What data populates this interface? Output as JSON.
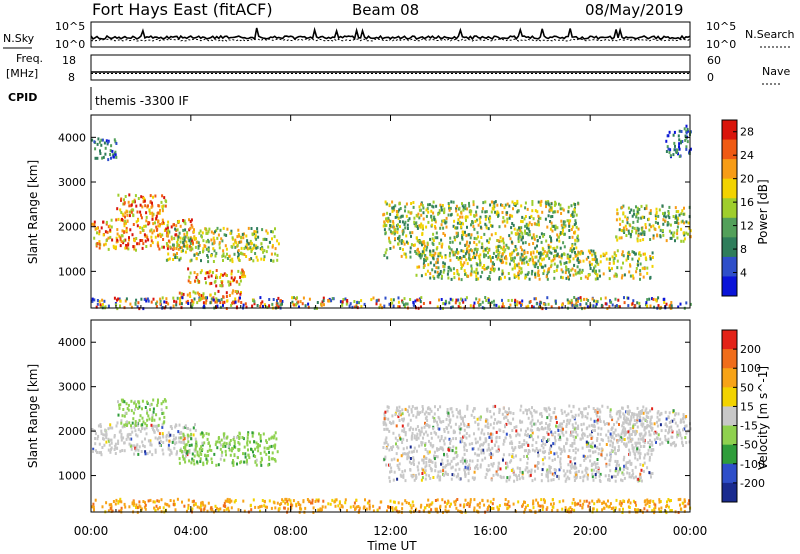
{
  "header": {
    "station": "Fort Hays East (fitACF)",
    "beam": "Beam 08",
    "date": "08/May/2019"
  },
  "noise_panel": {
    "left_label": "N.Sky",
    "right_label": "N.Search",
    "left_ticks": [
      "10^5",
      "10^0"
    ],
    "right_ticks": [
      "10^5",
      "10^0"
    ]
  },
  "freq_panel": {
    "left_label_1": "Freq.",
    "left_label_2": "[MHz]",
    "right_label": "Nave",
    "left_ticks": [
      "18",
      "8"
    ],
    "right_ticks": [
      "60",
      "0"
    ]
  },
  "cpid": {
    "label": "CPID",
    "value": "themis -3300 IF"
  },
  "x_axis": {
    "title": "Time UT",
    "ticks": [
      "00:00",
      "04:00",
      "08:00",
      "12:00",
      "16:00",
      "20:00",
      "00:00"
    ]
  },
  "colors": {
    "power": [
      "#0a14d8",
      "#2f4fc9",
      "#2f7d5b",
      "#53a05a",
      "#9fce2c",
      "#f2d300",
      "#f79c16",
      "#ef5a13",
      "#d9140b"
    ],
    "velocity": [
      "#1a2b8f",
      "#2f4fc9",
      "#2f9d3a",
      "#8fd14f",
      "#c8c8c8",
      "#f2d300",
      "#f7a317",
      "#f06d1b",
      "#e32218"
    ]
  },
  "chart_data": [
    {
      "type": "heatmap",
      "title": "",
      "xlabel": "Time UT",
      "ylabel": "Slant Range [km]",
      "xlim": [
        "00:00",
        "24:00"
      ],
      "ylim": [
        180,
        4500
      ],
      "yticks": [
        "1000",
        "2000",
        "3000",
        "4000"
      ],
      "colorbar": {
        "label": "Power [dB]",
        "ticks": [
          "4",
          "8",
          "12",
          "16",
          "20",
          "24",
          "28"
        ],
        "range": [
          0,
          30
        ]
      },
      "echo_regions": [
        {
          "start": "00:00",
          "end": "04:10",
          "range_km": [
            1500,
            2200
          ],
          "level": "high"
        },
        {
          "start": "01:00",
          "end": "03:00",
          "range_km": [
            2150,
            2750
          ],
          "level": "high"
        },
        {
          "start": "03:00",
          "end": "07:30",
          "range_km": [
            1250,
            2000
          ],
          "level": "medium"
        },
        {
          "start": "03:50",
          "end": "06:10",
          "range_km": [
            700,
            1100
          ],
          "level": "high"
        },
        {
          "start": "03:30",
          "end": "06:00",
          "range_km": [
            300,
            600
          ],
          "level": "high"
        },
        {
          "start": "00:00",
          "end": "24:00",
          "range_km": [
            200,
            450
          ],
          "level": "mixed"
        },
        {
          "start": "11:40",
          "end": "19:30",
          "range_km": [
            1300,
            2600
          ],
          "level": "medium"
        },
        {
          "start": "13:00",
          "end": "22:30",
          "range_km": [
            850,
            1500
          ],
          "level": "medium"
        },
        {
          "start": "21:00",
          "end": "24:00",
          "range_km": [
            1700,
            2500
          ],
          "level": "medium"
        },
        {
          "start": "23:00",
          "end": "24:00",
          "range_km": [
            3600,
            4300
          ],
          "level": "low"
        },
        {
          "start": "00:00",
          "end": "01:00",
          "range_km": [
            3500,
            4000
          ],
          "level": "low"
        }
      ]
    },
    {
      "type": "heatmap",
      "title": "",
      "xlabel": "Time UT",
      "ylabel": "Slant Range [km]",
      "xlim": [
        "00:00",
        "24:00"
      ],
      "ylim": [
        180,
        4500
      ],
      "yticks": [
        "1000",
        "2000",
        "3000",
        "4000"
      ],
      "colorbar": {
        "label": "Velocity [m s^-1]",
        "ticks": [
          "200",
          "100",
          "50",
          "15",
          "-15",
          "-50",
          "-100",
          "-200"
        ],
        "range": [
          -250,
          250
        ]
      },
      "echo_regions": [
        {
          "start": "00:00",
          "end": "04:10",
          "range_km": [
            1500,
            2200
          ],
          "velocity": "near zero"
        },
        {
          "start": "01:00",
          "end": "03:00",
          "range_km": [
            2150,
            2750
          ],
          "velocity": "positive"
        },
        {
          "start": "03:30",
          "end": "07:30",
          "range_km": [
            1250,
            2000
          ],
          "velocity": "positive"
        },
        {
          "start": "00:00",
          "end": "24:00",
          "range_km": [
            200,
            500
          ],
          "velocity": "negative"
        },
        {
          "start": "11:40",
          "end": "22:30",
          "range_km": [
            900,
            2600
          ],
          "velocity": "near zero"
        },
        {
          "start": "21:00",
          "end": "24:00",
          "range_km": [
            1700,
            2500
          ],
          "velocity": "near zero"
        }
      ]
    }
  ]
}
